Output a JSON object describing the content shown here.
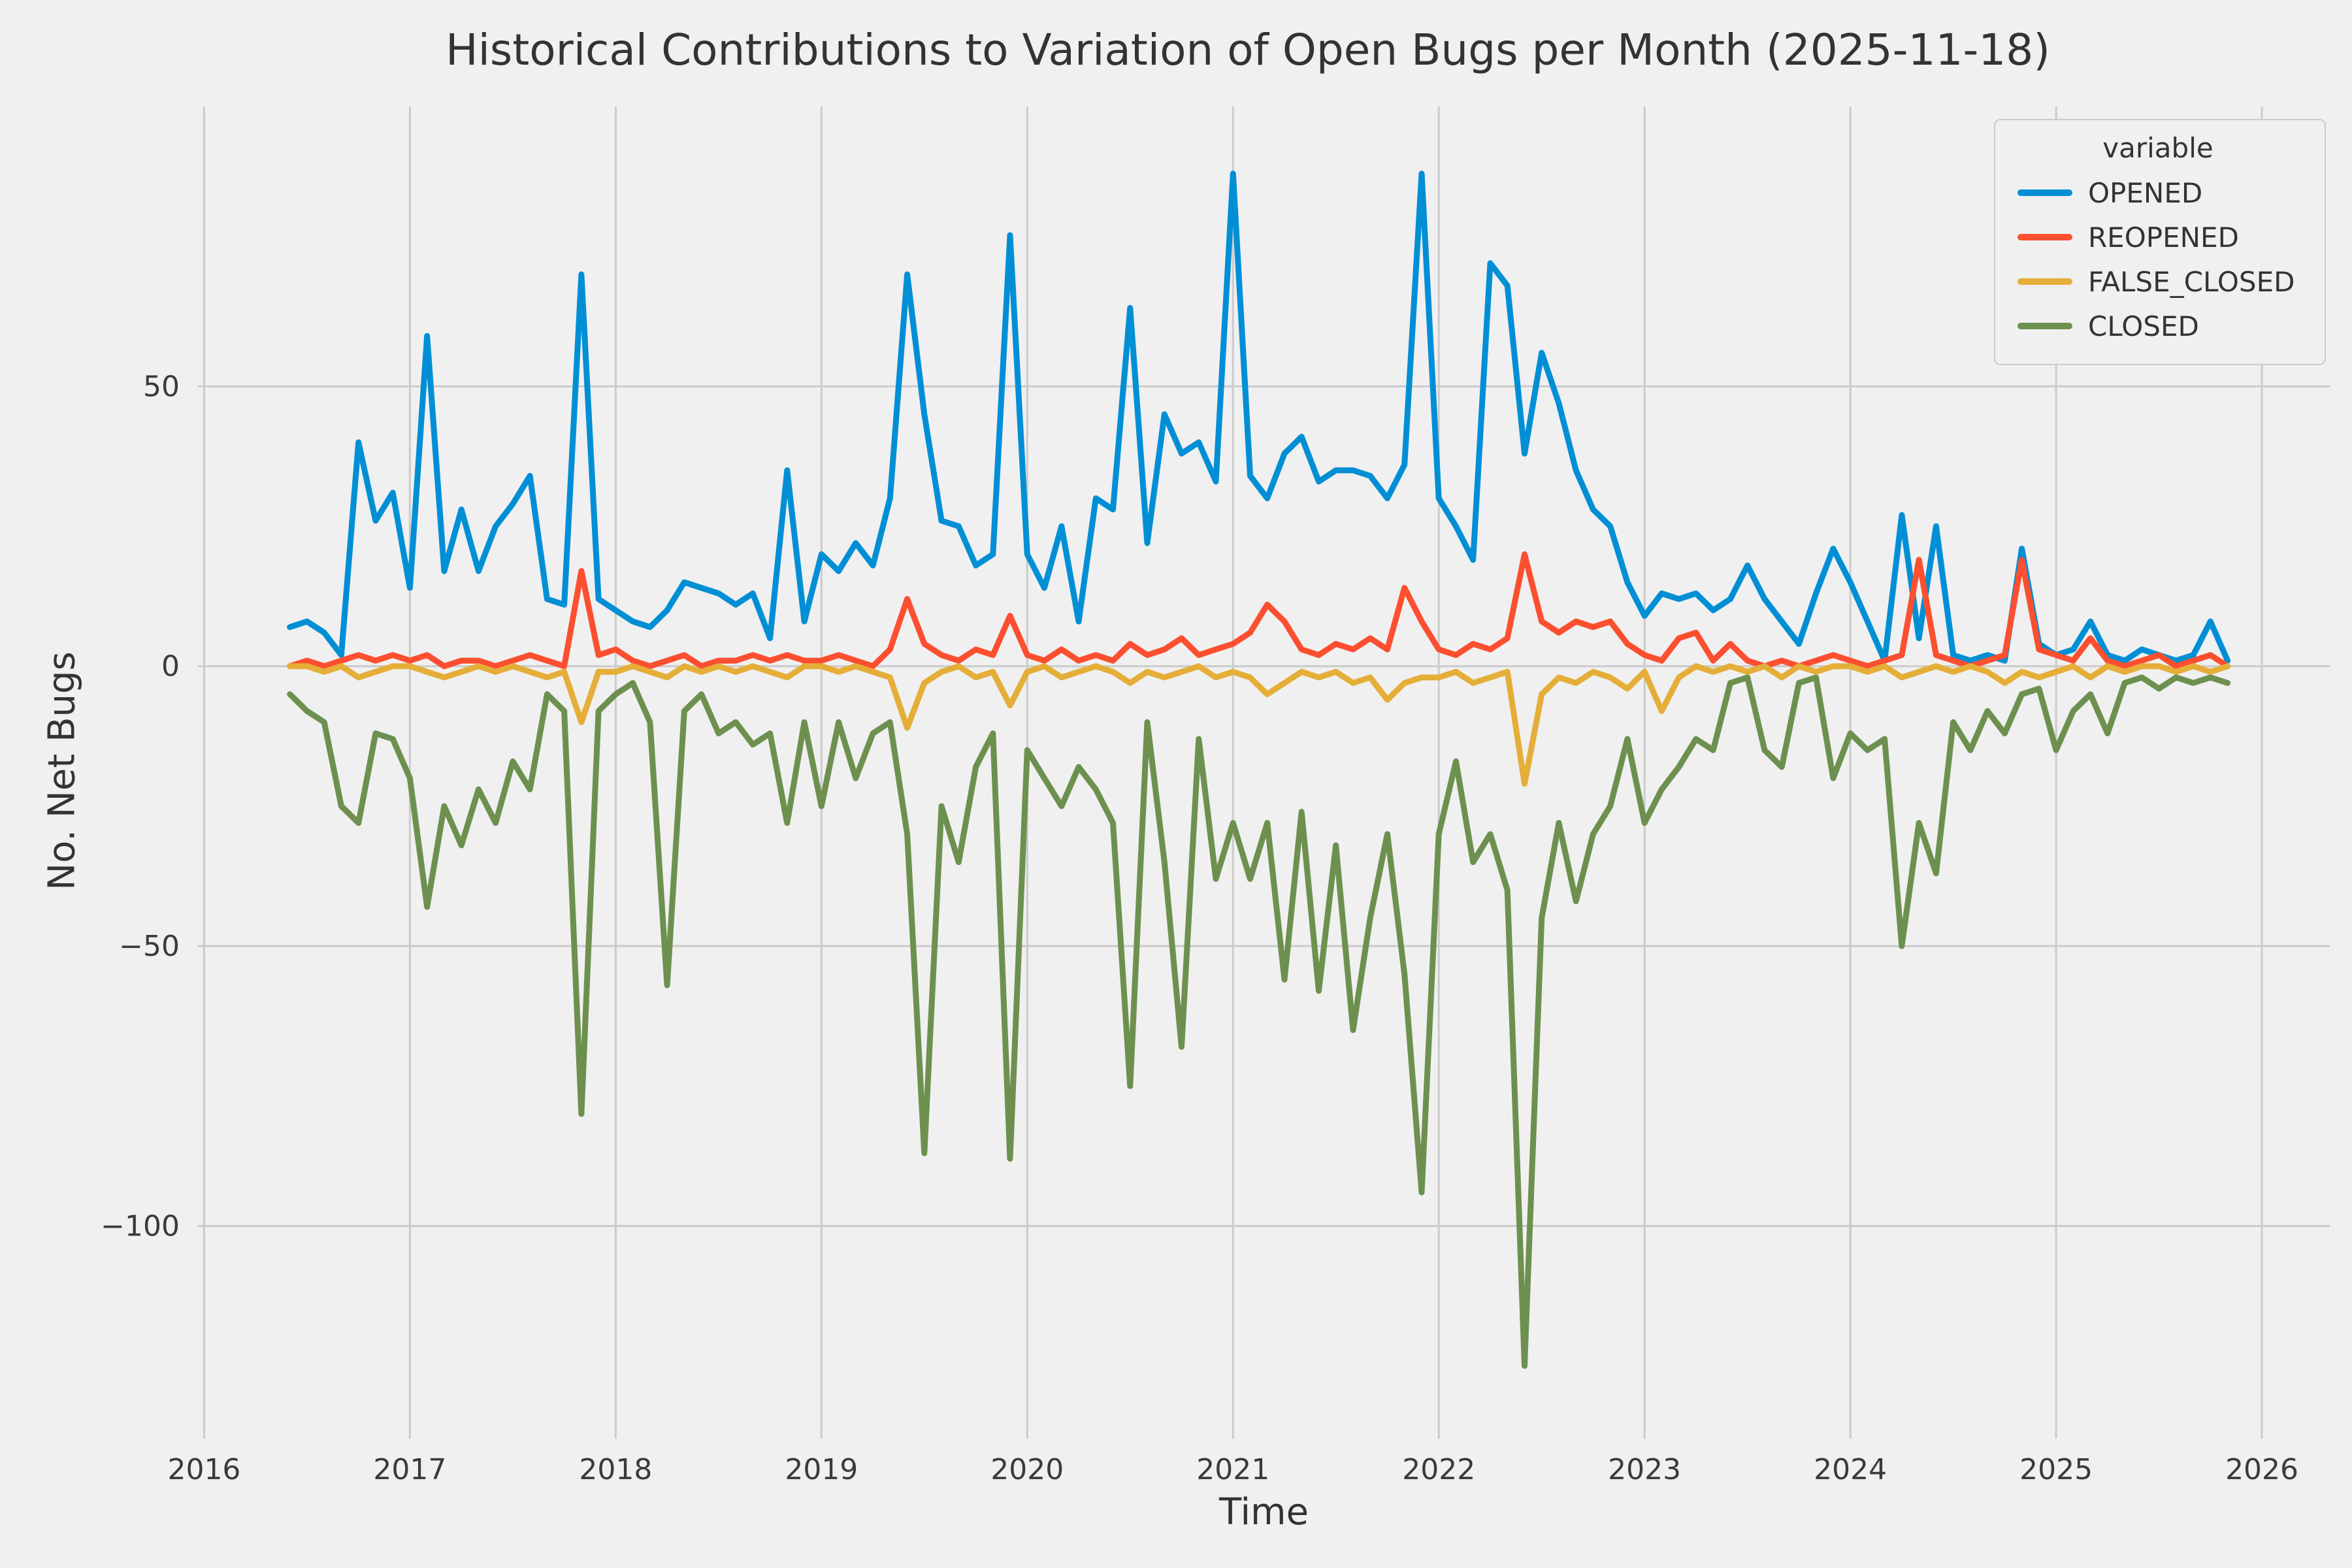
{
  "figure": {
    "background": "#f0f0f0",
    "grid_color": "#cbcbcb",
    "text_color": "#333333"
  },
  "chart_data": {
    "type": "line",
    "title": "Historical Contributions to Variation of Open Bugs per Month (2025-11-18)",
    "xlabel": "Time",
    "ylabel": "No. Net Bugs",
    "x_start": "2016-06",
    "x_end": "2025-11",
    "x_freq": "monthly",
    "xlim": [
      2015.97,
      2026.33
    ],
    "ylim": [
      -138,
      100
    ],
    "grid": true,
    "xticks": {
      "values": [
        2016,
        2017,
        2018,
        2019,
        2020,
        2021,
        2022,
        2023,
        2024,
        2025,
        2026
      ],
      "labels": [
        "2016",
        "2017",
        "2018",
        "2019",
        "2020",
        "2021",
        "2022",
        "2023",
        "2024",
        "2025",
        "2026"
      ]
    },
    "yticks": {
      "values": [
        50,
        0,
        -50,
        -100
      ],
      "labels": [
        "50",
        "0",
        "−50",
        "−100"
      ]
    },
    "legend": {
      "title": "variable",
      "position": "upper right",
      "entries": [
        "OPENED",
        "REOPENED",
        "FALSE_CLOSED",
        "CLOSED"
      ]
    },
    "series": [
      {
        "name": "OPENED",
        "color": "#008fd5",
        "values": [
          7,
          8,
          6,
          2,
          40,
          26,
          31,
          14,
          59,
          17,
          28,
          17,
          25,
          29,
          34,
          12,
          11,
          70,
          12,
          10,
          8,
          7,
          10,
          15,
          14,
          13,
          11,
          13,
          5,
          35,
          8,
          20,
          17,
          22,
          18,
          30,
          70,
          45,
          26,
          25,
          18,
          20,
          77,
          20,
          14,
          25,
          8,
          30,
          28,
          64,
          22,
          45,
          38,
          40,
          33,
          88,
          34,
          30,
          38,
          41,
          33,
          35,
          35,
          34,
          30,
          36,
          88,
          30,
          25,
          19,
          72,
          68,
          38,
          56,
          47,
          35,
          28,
          25,
          15,
          9,
          13,
          12,
          13,
          10,
          12,
          18,
          12,
          8,
          4,
          13,
          21,
          15,
          8,
          1,
          27,
          5,
          25,
          2,
          1,
          2,
          1,
          21,
          4,
          2,
          3,
          8,
          2,
          1,
          3,
          2,
          1,
          2,
          8,
          1
        ]
      },
      {
        "name": "REOPENED",
        "color": "#fc4f30",
        "values": [
          0,
          1,
          0,
          1,
          2,
          1,
          2,
          1,
          2,
          0,
          1,
          1,
          0,
          1,
          2,
          1,
          0,
          17,
          2,
          3,
          1,
          0,
          1,
          2,
          0,
          1,
          1,
          2,
          1,
          2,
          1,
          1,
          2,
          1,
          0,
          3,
          12,
          4,
          2,
          1,
          3,
          2,
          9,
          2,
          1,
          3,
          1,
          2,
          1,
          4,
          2,
          3,
          5,
          2,
          3,
          4,
          6,
          11,
          8,
          3,
          2,
          4,
          3,
          5,
          3,
          14,
          8,
          3,
          2,
          4,
          3,
          5,
          20,
          8,
          6,
          8,
          7,
          8,
          4,
          2,
          1,
          5,
          6,
          1,
          4,
          1,
          0,
          1,
          0,
          1,
          2,
          1,
          0,
          1,
          2,
          19,
          2,
          1,
          0,
          1,
          2,
          19,
          3,
          2,
          1,
          5,
          1,
          0,
          1,
          2,
          0,
          1,
          2,
          0
        ]
      },
      {
        "name": "FALSE_CLOSED",
        "color": "#e5ae38",
        "values": [
          0,
          0,
          -1,
          0,
          -2,
          -1,
          0,
          0,
          -1,
          -2,
          -1,
          0,
          -1,
          0,
          -1,
          -2,
          -1,
          -10,
          -1,
          -1,
          0,
          -1,
          -2,
          0,
          -1,
          0,
          -1,
          0,
          -1,
          -2,
          0,
          0,
          -1,
          0,
          -1,
          -2,
          -11,
          -3,
          -1,
          0,
          -2,
          -1,
          -7,
          -1,
          0,
          -2,
          -1,
          0,
          -1,
          -3,
          -1,
          -2,
          -1,
          0,
          -2,
          -1,
          -2,
          -5,
          -3,
          -1,
          -2,
          -1,
          -3,
          -2,
          -6,
          -3,
          -2,
          -2,
          -1,
          -3,
          -2,
          -1,
          -21,
          -5,
          -2,
          -3,
          -1,
          -2,
          -4,
          -1,
          -8,
          -2,
          0,
          -1,
          0,
          -1,
          0,
          -2,
          0,
          -1,
          0,
          0,
          -1,
          0,
          -2,
          -1,
          0,
          -1,
          0,
          -1,
          -3,
          -1,
          -2,
          -1,
          0,
          -2,
          0,
          -1,
          0,
          0,
          -1,
          0,
          -1,
          0
        ]
      },
      {
        "name": "CLOSED",
        "color": "#6d904f",
        "values": [
          -5,
          -8,
          -10,
          -25,
          -28,
          -12,
          -13,
          -20,
          -43,
          -25,
          -32,
          -22,
          -28,
          -17,
          -22,
          -5,
          -8,
          -80,
          -8,
          -5,
          -3,
          -10,
          -57,
          -8,
          -5,
          -12,
          -10,
          -14,
          -12,
          -28,
          -10,
          -25,
          -10,
          -20,
          -12,
          -10,
          -30,
          -87,
          -25,
          -35,
          -18,
          -12,
          -88,
          -15,
          -20,
          -25,
          -18,
          -22,
          -28,
          -75,
          -10,
          -35,
          -68,
          -13,
          -38,
          -28,
          -38,
          -28,
          -56,
          -26,
          -58,
          -32,
          -65,
          -45,
          -30,
          -55,
          -94,
          -30,
          -17,
          -35,
          -30,
          -40,
          -125,
          -45,
          -28,
          -42,
          -30,
          -25,
          -13,
          -28,
          -22,
          -18,
          -13,
          -15,
          -3,
          -2,
          -15,
          -18,
          -3,
          -2,
          -20,
          -12,
          -15,
          -13,
          -50,
          -28,
          -37,
          -10,
          -15,
          -8,
          -12,
          -5,
          -4,
          -15,
          -8,
          -5,
          -12,
          -3,
          -2,
          -4,
          -2,
          -3,
          -2,
          -3
        ]
      }
    ]
  }
}
